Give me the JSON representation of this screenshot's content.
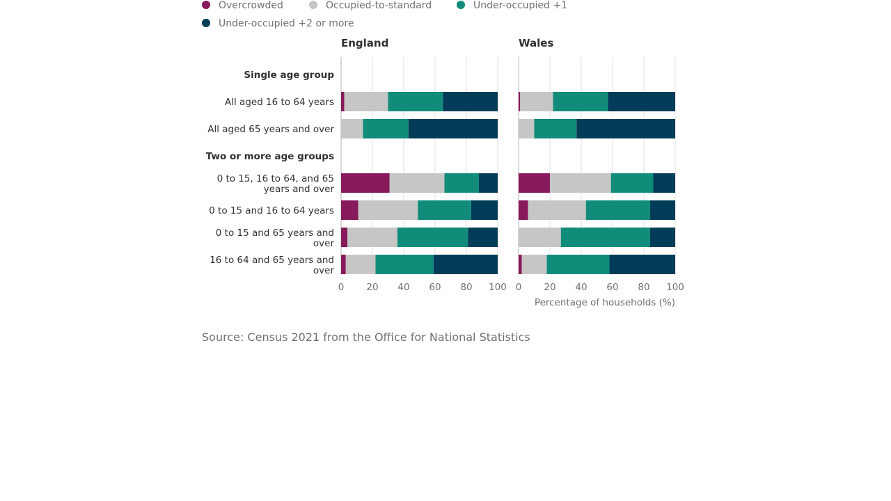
{
  "chart_data": {
    "type": "bar",
    "orientation": "horizontal",
    "stacked": true,
    "legend": {
      "placement": "top-left",
      "entries": [
        {
          "name": "Overcrowded",
          "color": "#871A5B"
        },
        {
          "name": "Occupied-to-standard",
          "color": "#C6C6C6"
        },
        {
          "name": "Under-occupied +1",
          "color": "#118C7B"
        },
        {
          "name": "Under-occupied +2 or more",
          "color": "#003C57"
        }
      ]
    },
    "xlabel": "Percentage of households (%)",
    "xlim": [
      0,
      100
    ],
    "xticks": [
      "0",
      "20",
      "40",
      "60",
      "80",
      "100"
    ],
    "grid": true,
    "rows": [
      {
        "label": "Single age group",
        "heading": true
      },
      {
        "label": "All aged 16 to 64 years"
      },
      {
        "label": "All aged 65 years and over"
      },
      {
        "label": "Two or more age groups",
        "heading": true
      },
      {
        "label": "0 to 15, 16 to 64, and 65 years and over"
      },
      {
        "label": "0 to 15 and 16 to 64 years"
      },
      {
        "label": "0 to 15 and 65 years and over"
      },
      {
        "label": "16 to 64 and 65 years and over"
      }
    ],
    "panels": [
      {
        "title": "England",
        "values": [
          null,
          [
            2,
            28,
            35,
            35
          ],
          [
            0,
            14,
            29,
            57
          ],
          null,
          [
            31,
            35,
            22,
            12
          ],
          [
            11,
            38,
            34,
            17
          ],
          [
            4,
            32,
            45,
            19
          ],
          [
            3,
            19,
            37,
            41
          ]
        ]
      },
      {
        "title": "Wales",
        "values": [
          null,
          [
            1,
            21,
            35,
            43
          ],
          [
            0,
            10,
            27,
            63
          ],
          null,
          [
            20,
            39,
            27,
            14
          ],
          [
            6,
            37,
            41,
            16
          ],
          [
            0,
            27,
            57,
            16
          ],
          [
            2,
            16,
            40,
            42
          ]
        ]
      }
    ]
  },
  "source": "Source: Census 2021 from the Office for National Statistics"
}
